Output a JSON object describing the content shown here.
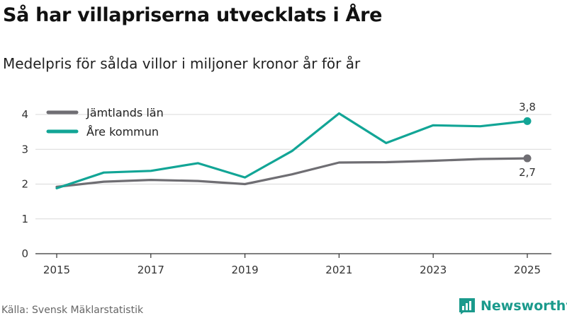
{
  "header": {
    "title": "Så har villapriserna utvecklats i Åre",
    "subtitle": "Medelpris för sålda villor i miljoner kronor år för år"
  },
  "footer": {
    "source": "Källa: Svensk Mäklarstatistik",
    "brand": "Newsworthy"
  },
  "colors": {
    "jamtland": "#6f6e73",
    "are": "#12a596",
    "grid": "#d9d9d9",
    "axis": "#333333",
    "brand": "#1a9a8c"
  },
  "chart_data": {
    "type": "line",
    "title": "Så har villapriserna utvecklats i Åre",
    "subtitle": "Medelpris för sålda villor i miljoner kronor år för år",
    "xlabel": "",
    "ylabel": "",
    "x": [
      2015,
      2016,
      2017,
      2018,
      2019,
      2020,
      2021,
      2022,
      2023,
      2024,
      2025
    ],
    "xticks": [
      "2015",
      "2017",
      "2019",
      "2021",
      "2023",
      "2025"
    ],
    "yticks": [
      "0",
      "1",
      "2",
      "3",
      "4"
    ],
    "xlim": [
      2015,
      2025
    ],
    "ylim": [
      0,
      4
    ],
    "grid": true,
    "legend_position": "top-left",
    "series": [
      {
        "name": "Jämtlands län",
        "color_key": "jamtland",
        "values": [
          1.92,
          2.07,
          2.12,
          2.09,
          2.0,
          2.28,
          2.62,
          2.63,
          2.67,
          2.72,
          2.74
        ],
        "end_label": "2,7",
        "end_label_position": "below"
      },
      {
        "name": "Åre kommun",
        "color_key": "are",
        "values": [
          1.88,
          2.33,
          2.38,
          2.6,
          2.19,
          2.95,
          4.03,
          3.18,
          3.69,
          3.66,
          3.81
        ],
        "end_label": "3,8",
        "end_label_position": "above"
      }
    ]
  }
}
